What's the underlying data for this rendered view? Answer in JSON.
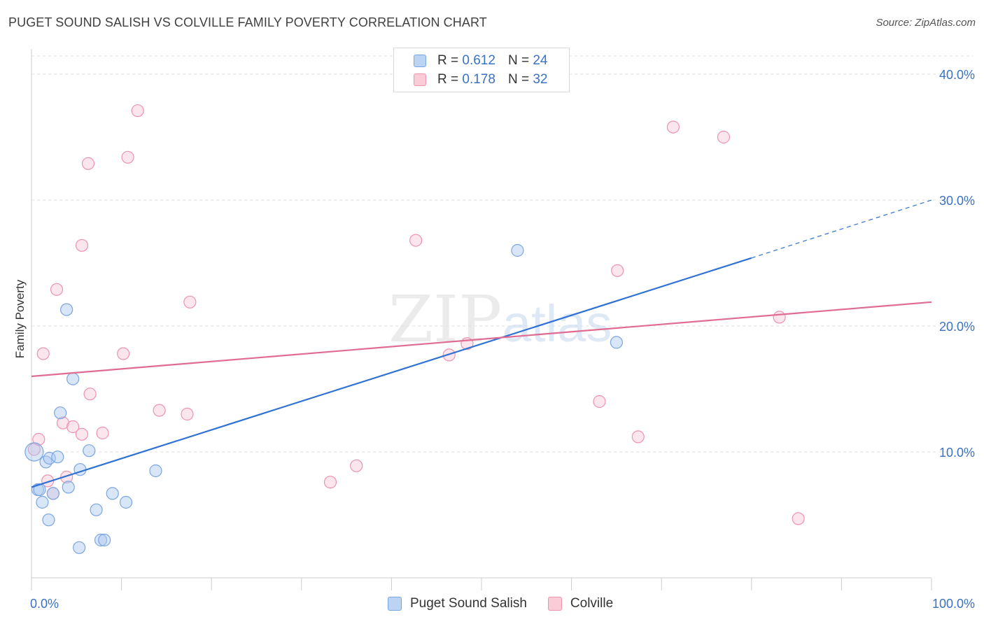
{
  "header": {
    "title": "PUGET SOUND SALISH VS COLVILLE FAMILY POVERTY CORRELATION CHART",
    "source": "Source: ZipAtlas.com"
  },
  "watermark": {
    "zip": "ZIP",
    "atlas": "atlas"
  },
  "legend": {
    "r_label": "R = ",
    "n_label": "N = ",
    "entries": [
      {
        "name": "Puget Sound Salish",
        "r": "0.612",
        "n": "24",
        "fill": "#bcd4f4",
        "stroke": "#7aa6e0"
      },
      {
        "name": "Colville",
        "r": "0.178",
        "n": "32",
        "fill": "#f9ccd8",
        "stroke": "#ec93ae"
      }
    ]
  },
  "colors": {
    "blue_line": "#2f72d4",
    "pink_line": "#e06c93",
    "blue_point_fill": "rgba(170,200,240,0.45)",
    "blue_point_stroke": "#7aa6e0",
    "pink_point_fill": "rgba(248,200,214,0.45)",
    "pink_point_stroke": "#ec93ae",
    "tick_label": "#3a72c4",
    "grid": "#e3e3e3"
  },
  "chart_data": {
    "type": "scatter",
    "title": "PUGET SOUND SALISH VS COLVILLE FAMILY POVERTY CORRELATION CHART",
    "xlabel": "",
    "ylabel": "Family Poverty",
    "xlim": [
      0,
      100
    ],
    "ylim": [
      0,
      42
    ],
    "x_tick_labels": [
      "0.0%",
      "100.0%"
    ],
    "y_ticks": [
      10,
      20,
      30,
      40
    ],
    "y_tick_labels": [
      "10.0%",
      "20.0%",
      "30.0%",
      "40.0%"
    ],
    "grid": true,
    "legend_position": "top-center",
    "series": [
      {
        "name": "Puget Sound Salish",
        "r": 0.612,
        "n": 24,
        "points": [
          [
            0.3,
            10.0
          ],
          [
            0.7,
            7.0
          ],
          [
            0.9,
            7.0
          ],
          [
            1.2,
            6.0
          ],
          [
            1.6,
            9.2
          ],
          [
            1.9,
            4.6
          ],
          [
            2.0,
            9.5
          ],
          [
            2.4,
            6.7
          ],
          [
            2.9,
            9.6
          ],
          [
            3.2,
            13.1
          ],
          [
            3.9,
            21.3
          ],
          [
            4.1,
            7.2
          ],
          [
            4.6,
            15.8
          ],
          [
            5.3,
            2.4
          ],
          [
            5.4,
            8.6
          ],
          [
            6.4,
            10.1
          ],
          [
            7.2,
            5.4
          ],
          [
            7.7,
            3.0
          ],
          [
            8.1,
            3.0
          ],
          [
            9.0,
            6.7
          ],
          [
            10.5,
            6.0
          ],
          [
            13.8,
            8.5
          ],
          [
            54.0,
            26.0
          ],
          [
            65.0,
            18.7
          ]
        ],
        "trend": {
          "x0": 0,
          "y0": 7.2,
          "x1": 80,
          "y1": 25.4,
          "dashed_to_x": 100,
          "dashed_to_y": 30.0
        }
      },
      {
        "name": "Colville",
        "points": [
          [
            0.3,
            10.2
          ],
          [
            0.8,
            11.0
          ],
          [
            1.3,
            17.8
          ],
          [
            1.8,
            7.7
          ],
          [
            2.4,
            6.7
          ],
          [
            2.8,
            22.9
          ],
          [
            3.5,
            12.3
          ],
          [
            3.9,
            8.0
          ],
          [
            4.6,
            12.0
          ],
          [
            5.6,
            11.4
          ],
          [
            5.6,
            26.4
          ],
          [
            6.3,
            32.9
          ],
          [
            6.5,
            14.6
          ],
          [
            7.9,
            11.5
          ],
          [
            10.2,
            17.8
          ],
          [
            10.7,
            33.4
          ],
          [
            11.8,
            37.1
          ],
          [
            14.2,
            13.3
          ],
          [
            17.3,
            13.0
          ],
          [
            17.6,
            21.9
          ],
          [
            33.2,
            7.6
          ],
          [
            36.1,
            8.9
          ],
          [
            42.7,
            26.8
          ],
          [
            46.4,
            17.7
          ],
          [
            48.4,
            18.6
          ],
          [
            63.1,
            14.0
          ],
          [
            65.1,
            24.4
          ],
          [
            67.4,
            11.2
          ],
          [
            71.3,
            35.8
          ],
          [
            76.9,
            35.0
          ],
          [
            83.1,
            20.7
          ],
          [
            85.2,
            4.7
          ]
        ],
        "r": 0.178,
        "n": 32,
        "trend": {
          "x0": 0,
          "y0": 16.0,
          "x1": 100,
          "y1": 21.9
        }
      }
    ]
  }
}
